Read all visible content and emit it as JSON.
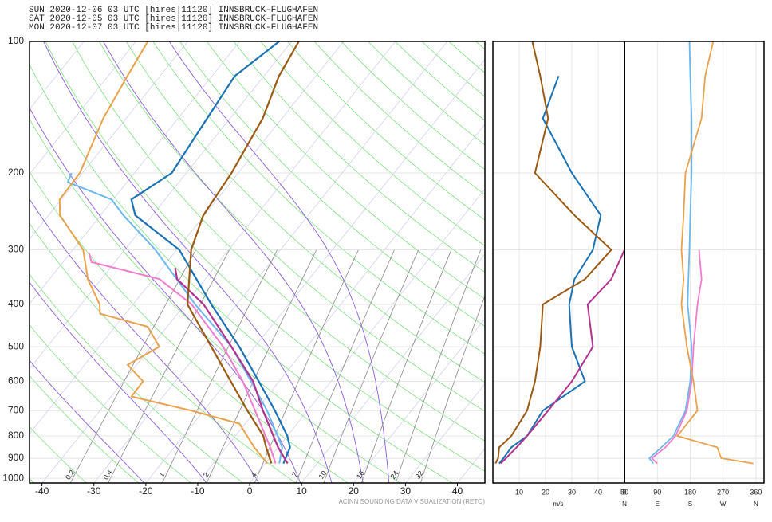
{
  "chart_data": {
    "type": "skewt",
    "ylim": [
      100,
      1025
    ],
    "yticks": [
      100,
      200,
      300,
      400,
      500,
      600,
      700,
      800,
      900,
      1000
    ],
    "log_y": true,
    "xlim": [
      -42.4,
      45.3
    ],
    "xticks": [
      -40,
      -30,
      -20,
      -10,
      0,
      10,
      20,
      30,
      40
    ],
    "grid": true,
    "mixing_ratios": [
      0.2,
      0.4,
      1,
      2,
      4,
      7,
      10,
      16,
      24,
      32
    ],
    "wind_levels": [
      925,
      900,
      850,
      800,
      700,
      600,
      500,
      400,
      350,
      300,
      250,
      200,
      150,
      120,
      100
    ],
    "speed_axis": {
      "xlim": [
        0,
        50
      ],
      "xticks": [
        10,
        20,
        30,
        40,
        50
      ],
      "label": "m/s"
    },
    "direction_axis": {
      "xlim": [
        0,
        382
      ],
      "xticks": [
        0,
        90,
        180,
        270,
        360
      ],
      "compass": [
        "N",
        "E",
        "S",
        "W",
        "N"
      ]
    },
    "footer": "ACINN SOUNDING DATA VISUALIZATION (RETO)",
    "series": [
      {
        "name": "SUN 2020-12-06 03 UTC [hires|11120] INNSBRUCK-FLUGHAFEN",
        "color": "#1a72b4",
        "dewpoint_color": "#6ab8ee",
        "pressure": [
          925,
          850,
          800,
          700,
          600,
          500,
          400,
          300,
          250,
          230,
          200,
          150,
          120,
          100
        ],
        "values": [
          3.5,
          2.3,
          0,
          -6.3,
          -13.9,
          -23,
          -34.9,
          -49.5,
          -63.3,
          -66.5,
          -62.8,
          -64.4,
          -65.6,
          -62.4
        ],
        "dew_pressure": [
          925,
          850,
          700,
          600,
          500,
          400,
          300,
          250,
          230,
          210,
          200
        ],
        "dewpoint": [
          2.7,
          0.8,
          -7.8,
          -15.4,
          -24.5,
          -38,
          -54.1,
          -65.6,
          -70.3,
          -81.4,
          -82.1
        ],
        "speed": [
          2.4,
          4,
          7,
          13,
          19,
          35,
          30,
          29,
          31,
          38,
          41,
          30,
          19,
          25,
          null
        ],
        "direction": [
          79,
          68,
          101,
          134,
          167,
          180,
          184,
          173,
          175,
          178,
          180,
          184,
          184,
          180,
          178
        ]
      },
      {
        "name": "SAT 2020-12-05 03 UTC [hires|11120] INNSBRUCK-FLUGHAFEN",
        "color": "#b3328f",
        "dewpoint_color": "#f27ccd",
        "pressure": [
          925,
          850,
          700,
          600,
          500,
          400,
          350,
          330
        ],
        "values": [
          4.3,
          0,
          -8.6,
          -15,
          -24.5,
          -36.4,
          -45.4,
          -47.5
        ],
        "dew_pressure": [
          925,
          850,
          700,
          600,
          500,
          400,
          350,
          320,
          305
        ],
        "dewpoint": [
          2.0,
          -1.5,
          -10.1,
          -17,
          -26.1,
          -38.7,
          -48.8,
          -64.5,
          -66.4
        ],
        "speed": [
          3,
          5,
          9,
          13,
          21,
          30,
          38,
          36,
          45,
          50,
          null,
          null,
          null,
          null,
          null
        ],
        "direction": [
          90,
          75,
          112,
          140,
          171,
          184,
          189,
          200,
          211,
          204,
          null,
          null,
          null,
          null,
          null
        ]
      },
      {
        "name": "MON 2020-12-07 03 UTC [hires|11120] INNSBRUCK-FLUGHAFEN",
        "color": "#9a5a12",
        "dewpoint_color": "#e9a24c",
        "pressure": [
          925,
          850,
          800,
          700,
          600,
          500,
          400,
          300,
          250,
          200,
          150,
          120,
          100
        ],
        "values": [
          1.2,
          -2.3,
          -4.6,
          -11.6,
          -19.3,
          -28.4,
          -39.5,
          -47.2,
          -50.2,
          -51.3,
          -53.7,
          -57.1,
          -58.6
        ],
        "dew_pressure": [
          925,
          850,
          750,
          700,
          650,
          600,
          550,
          500,
          450,
          420,
          400,
          350,
          300,
          250,
          230,
          200,
          150,
          120,
          100
        ],
        "dewpoint": [
          0.4,
          -4.6,
          -11.1,
          -22.4,
          -36.1,
          -36.2,
          -41.7,
          -38.4,
          -43.7,
          -54.9,
          -56.4,
          -62.6,
          -68,
          -77.8,
          -80.3,
          -80.5,
          -84.4,
          -86.3,
          -87.7
        ],
        "speed": [
          1,
          2,
          2.4,
          7,
          13,
          16,
          18,
          19,
          35,
          45,
          31,
          16,
          21,
          18,
          15
        ],
        "direction": [
          353,
          265,
          254,
          145,
          200,
          189,
          171,
          156,
          162,
          156,
          162,
          167,
          211,
          221,
          243
        ]
      }
    ]
  }
}
